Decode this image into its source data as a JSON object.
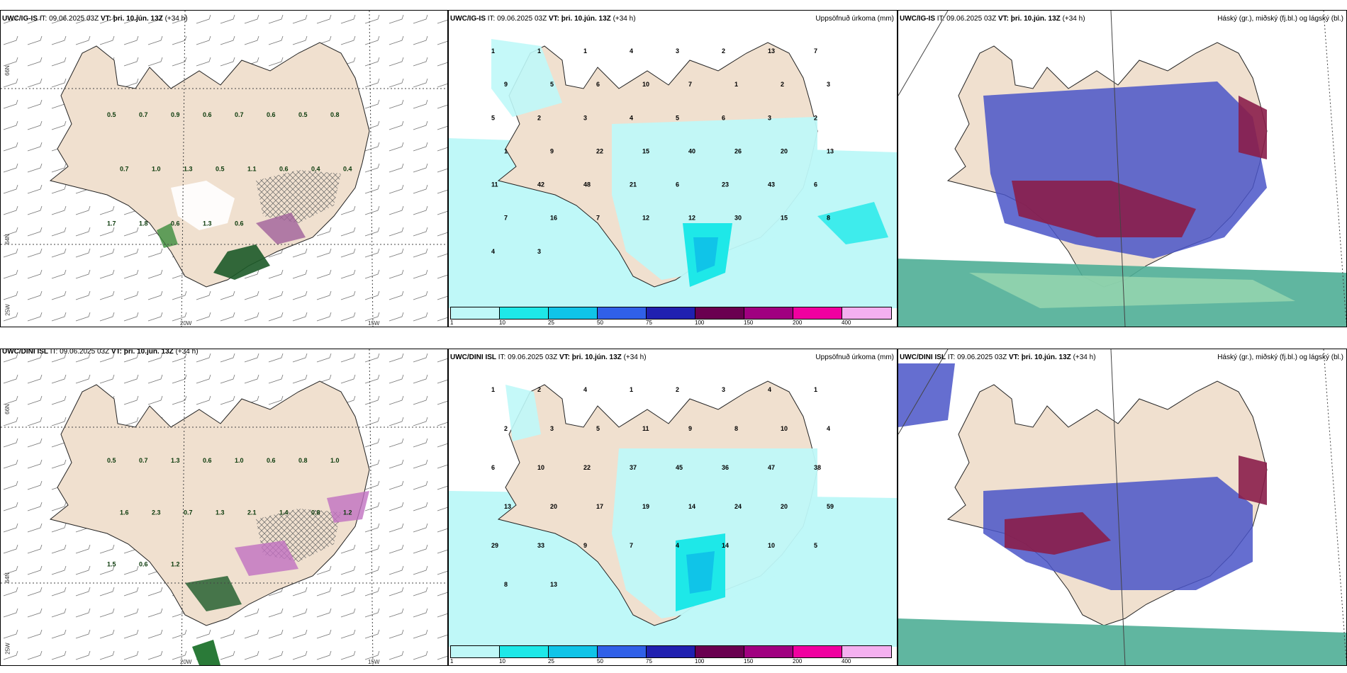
{
  "panels": [
    {
      "id": "p1",
      "model": "UWC/IG-IS",
      "it_label": "IT:",
      "it_value": "09.06.2025 03Z",
      "vt_label": "VT:",
      "vt_value": "þri. 10.jún. 13Z",
      "lead": "(+34 h)",
      "right_title": ""
    },
    {
      "id": "p2",
      "model": "UWC/IG-IS",
      "it_label": "IT:",
      "it_value": "09.06.2025 03Z",
      "vt_label": "VT:",
      "vt_value": "þri. 10.jún. 13Z",
      "lead": "(+34 h)",
      "right_title": "Uppsöfnuð úrkoma (mm)"
    },
    {
      "id": "p3",
      "model": "UWC/IG-IS",
      "it_label": "IT:",
      "it_value": "09.06.2025 03Z",
      "vt_label": "VT:",
      "vt_value": "þri. 10.jún. 13Z",
      "lead": "(+34 h)",
      "right_title": "Háský (gr.), miðský (fj.bl.) og lágský (bl.)"
    },
    {
      "id": "p4",
      "model": "UWC/DINI ISL",
      "it_label": "IT:",
      "it_value": "09.06.2025 03Z",
      "vt_label": "VT:",
      "vt_value": "þri. 10.jún. 13Z",
      "lead": "(+34 h)",
      "right_title": ""
    },
    {
      "id": "p5",
      "model": "UWC/DINI ISL",
      "it_label": "IT:",
      "it_value": "09.06.2025 03Z",
      "vt_label": "VT:",
      "vt_value": "þri. 10.jún. 13Z",
      "lead": "(+34 h)",
      "right_title": "Uppsöfnuð úrkoma (mm)"
    },
    {
      "id": "p6",
      "model": "UWC/DINI ISL",
      "it_label": "IT:",
      "it_value": "09.06.2025 03Z",
      "vt_label": "VT:",
      "vt_value": "þri. 10.jún. 13Z",
      "lead": "(+34 h)",
      "right_title": "Háský (gr.), miðský (fj.bl.) og lágský (bl.)"
    }
  ],
  "axes": {
    "lat66": "66N",
    "lat64": "64N",
    "lat63": "63N",
    "lon20": "20W",
    "lon15": "15W",
    "lon25": "25W"
  },
  "precip_legend": {
    "ticks": [
      "1",
      "10",
      "25",
      "50",
      "75",
      "100",
      "150",
      "200",
      "400"
    ],
    "colors": [
      "#bff8f8",
      "#1ee8e8",
      "#10c4e8",
      "#3060e8",
      "#2020b0",
      "#6a0050",
      "#a00080",
      "#f000a0",
      "#f4b0f0"
    ]
  },
  "wind_panel_labels_top": [
    "0.5",
    "0.7",
    "0.9",
    "0.6",
    "0.7",
    "0.6",
    "0.5",
    "0.8",
    "0.7",
    "1.0",
    "1.3",
    "0.5",
    "1.1",
    "0.6",
    "0.4",
    "0.4",
    "1.7",
    "1.8",
    "0.6",
    "1.3",
    "0.6"
  ],
  "wind_panel_labels_bottom": [
    "0.5",
    "0.7",
    "1.3",
    "0.6",
    "1.0",
    "0.6",
    "0.8",
    "1.0",
    "1.6",
    "2.3",
    "0.7",
    "1.3",
    "2.1",
    "1.4",
    "0.8",
    "1.2",
    "1.5",
    "0.6",
    "1.2"
  ],
  "precip_labels_top": [
    "1",
    "1",
    "1",
    "4",
    "3",
    "2",
    "13",
    "7",
    "9",
    "5",
    "6",
    "10",
    "7",
    "1",
    "2",
    "3",
    "5",
    "2",
    "3",
    "4",
    "5",
    "6",
    "3",
    "2",
    "1",
    "9",
    "22",
    "15",
    "40",
    "26",
    "20",
    "13",
    "11",
    "42",
    "48",
    "21",
    "6",
    "23",
    "43",
    "6",
    "7",
    "16",
    "7",
    "12",
    "12",
    "30",
    "15",
    "8",
    "4",
    "3"
  ],
  "precip_labels_bottom": [
    "1",
    "2",
    "4",
    "1",
    "2",
    "3",
    "4",
    "1",
    "2",
    "3",
    "5",
    "11",
    "9",
    "8",
    "10",
    "4",
    "6",
    "10",
    "22",
    "37",
    "45",
    "36",
    "47",
    "38",
    "13",
    "20",
    "17",
    "19",
    "14",
    "24",
    "20",
    "59",
    "29",
    "33",
    "9",
    "7",
    "4",
    "14",
    "10",
    "5",
    "8",
    "13"
  ]
}
